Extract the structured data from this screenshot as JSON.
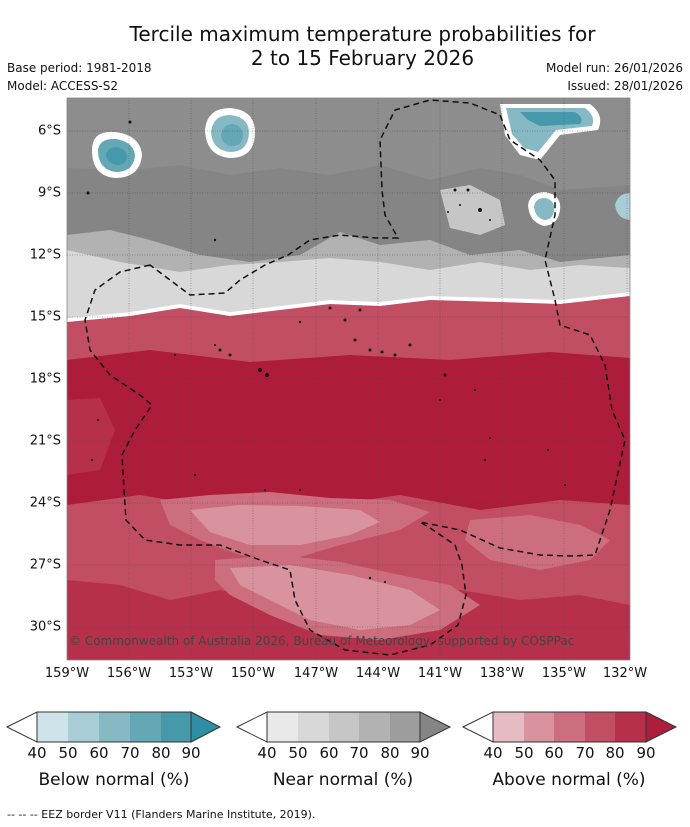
{
  "title": {
    "line1": "Tercile maximum temperature probabilities for",
    "line2": "2 to 15 February 2026"
  },
  "meta_left": {
    "base_period": "Base period: 1981-2018",
    "model": "Model: ACCESS-S2"
  },
  "meta_right": {
    "model_run": "Model run: 26/01/2026",
    "issued": "Issued: 28/01/2026"
  },
  "latitude_labels": [
    "6°S",
    "9°S",
    "12°S",
    "15°S",
    "18°S",
    "21°S",
    "24°S",
    "27°S",
    "30°S"
  ],
  "longitude_labels": [
    "159°W",
    "156°W",
    "153°W",
    "150°W",
    "147°W",
    "144°W",
    "141°W",
    "138°W",
    "135°W",
    "132°W"
  ],
  "copyright": "© Commonwealth of Australia 2026, Bureau of Meteorology, supported by COSPPac",
  "legend": {
    "ticks": [
      "40",
      "50",
      "60",
      "70",
      "80",
      "90"
    ],
    "below": {
      "title": "Below normal (%)",
      "colors": [
        "#ffffff",
        "#cfe4ea",
        "#a9cdd6",
        "#86b9c4",
        "#65a8b5",
        "#4699aa",
        "#2e8ea3"
      ]
    },
    "near": {
      "title": "Near normal (%)",
      "colors": [
        "#ffffff",
        "#e9e9e9",
        "#d8d8d8",
        "#c6c6c6",
        "#b2b2b2",
        "#9d9d9d",
        "#858585"
      ]
    },
    "above": {
      "title": "Above normal (%)",
      "colors": [
        "#ffffff",
        "#e5bcc3",
        "#d9939f",
        "#cd6e7f",
        "#c24e63",
        "#b7304b",
        "#ae1c3b"
      ]
    }
  },
  "footnote": "--  --  -- EEZ border V11 (Flanders Marine Institute, 2019)."
}
